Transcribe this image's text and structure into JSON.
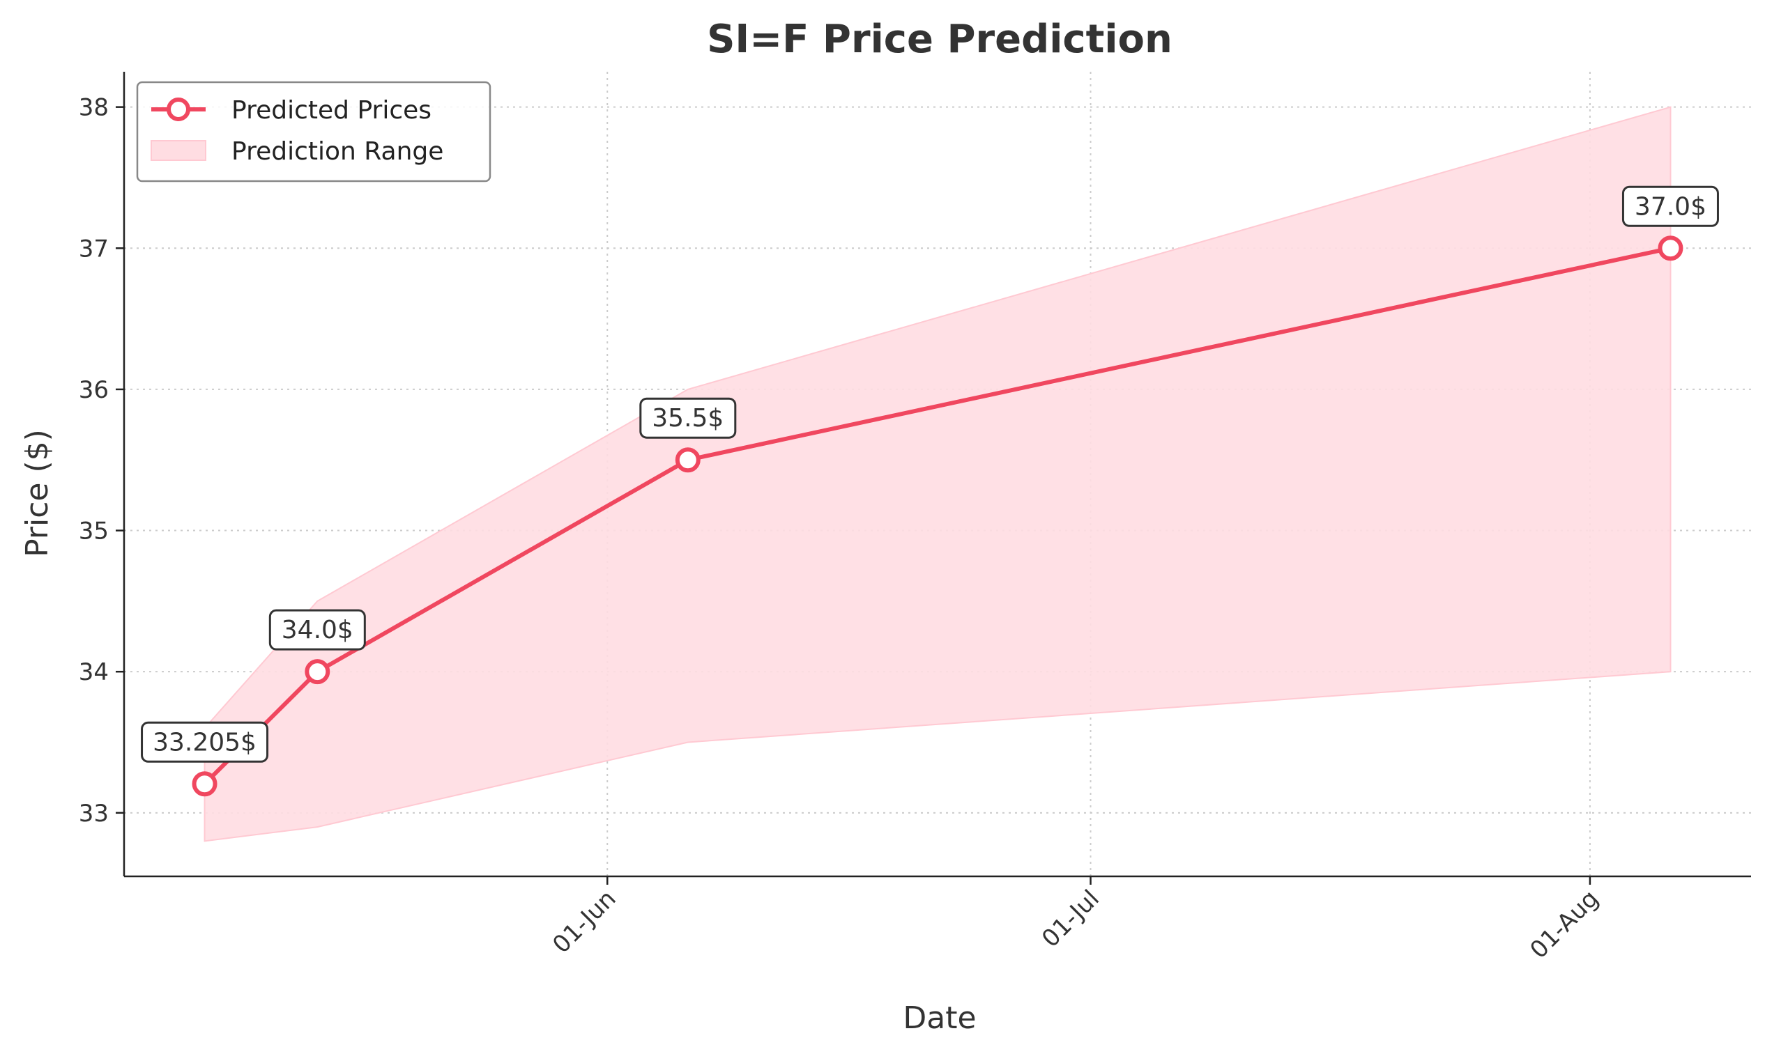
{
  "chart_data": {
    "type": "line",
    "title": "SI=F Price Prediction",
    "xlabel": "Date",
    "ylabel": "Price ($)",
    "x_ticks": [
      {
        "date": "2025-06-01",
        "label": "01-Jun"
      },
      {
        "date": "2025-07-01",
        "label": "01-Jul"
      },
      {
        "date": "2025-08-01",
        "label": "01-Aug"
      }
    ],
    "y_ticks": [
      33,
      34,
      35,
      36,
      37,
      38
    ],
    "xlim": [
      "2025-05-02",
      "2025-08-11"
    ],
    "ylim": [
      32.55,
      38.25
    ],
    "grid": true,
    "legend_position": "top-left",
    "series": [
      {
        "name": "Predicted Prices",
        "type": "line",
        "color": "#f0475f",
        "x": [
          "2025-05-07",
          "2025-05-14",
          "2025-06-06",
          "2025-08-06"
        ],
        "values": [
          33.205,
          34.0,
          35.5,
          37.0
        ],
        "labels": [
          "33.205$",
          "34.0$",
          "35.5$",
          "37.0$"
        ]
      },
      {
        "name": "Prediction Range",
        "type": "area",
        "color": "#ffdde2",
        "x": [
          "2025-05-07",
          "2025-05-14",
          "2025-06-06",
          "2025-08-06"
        ],
        "upper": [
          33.6,
          34.5,
          36.0,
          38.0
        ],
        "lower": [
          32.8,
          32.9,
          33.5,
          34.0
        ]
      }
    ]
  }
}
